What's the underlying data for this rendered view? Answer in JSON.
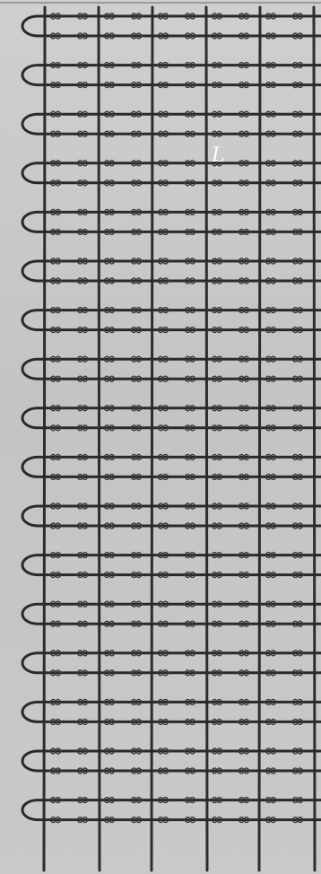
{
  "figure": {
    "label": "L",
    "colors": {
      "paper": "#c7c7c7",
      "ink": "#2a2a2a",
      "label": "#ffffff"
    }
  }
}
